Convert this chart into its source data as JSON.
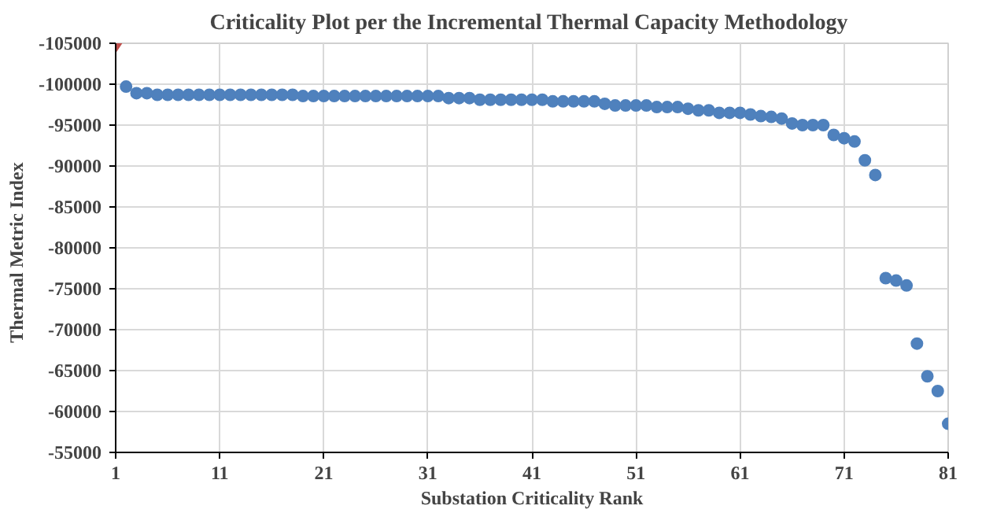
{
  "chart_data": {
    "type": "scatter",
    "title": "Criticality  Plot per the Incremental Thermal Capacity Methodology",
    "xlabel": "Substation Criticality Rank",
    "ylabel": "Thermal  Metric  Index",
    "xlim": [
      1,
      81
    ],
    "xticks": [
      1,
      11,
      21,
      31,
      41,
      51,
      61,
      71,
      81
    ],
    "ylim": [
      -55000,
      -105000
    ],
    "yticks": [
      -105000,
      -100000,
      -95000,
      -90000,
      -85000,
      -80000,
      -75000,
      -70000,
      -65000,
      -60000,
      -55000
    ],
    "grid": true,
    "series": [
      {
        "color": "#c0504d",
        "marker": "diamond",
        "x": [
          1
        ],
        "values": [
          -105000
        ]
      },
      {
        "color": "#4f81bd",
        "marker": "circle",
        "x": [
          2,
          3,
          4,
          5,
          6,
          7,
          8,
          9,
          10,
          11,
          12,
          13,
          14,
          15,
          16,
          17,
          18,
          19,
          20,
          21,
          22,
          23,
          24,
          25,
          26,
          27,
          28,
          29,
          30,
          31,
          32,
          33,
          34,
          35,
          36,
          37,
          38,
          39,
          40,
          41,
          42,
          43,
          44,
          45,
          46,
          47,
          48,
          49,
          50,
          51,
          52,
          53,
          54,
          55,
          56,
          57,
          58,
          59,
          60,
          61,
          62,
          63,
          64,
          65,
          66,
          67,
          68,
          69,
          70,
          71,
          72,
          73,
          74,
          75,
          76,
          77,
          78,
          79,
          80,
          81
        ],
        "values": [
          -99700,
          -98900,
          -98900,
          -98700,
          -98700,
          -98700,
          -98700,
          -98700,
          -98700,
          -98700,
          -98700,
          -98700,
          -98700,
          -98700,
          -98700,
          -98700,
          -98700,
          -98550,
          -98550,
          -98550,
          -98550,
          -98550,
          -98550,
          -98550,
          -98550,
          -98550,
          -98550,
          -98550,
          -98550,
          -98550,
          -98550,
          -98300,
          -98300,
          -98300,
          -98100,
          -98100,
          -98100,
          -98100,
          -98100,
          -98100,
          -98100,
          -97900,
          -97900,
          -97900,
          -97900,
          -97900,
          -97600,
          -97400,
          -97400,
          -97400,
          -97400,
          -97200,
          -97200,
          -97200,
          -97000,
          -96800,
          -96800,
          -96500,
          -96500,
          -96500,
          -96300,
          -96100,
          -96000,
          -95800,
          -95200,
          -95000,
          -95000,
          -95000,
          -93800,
          -93400,
          -93000,
          -90700,
          -88900,
          -76300,
          -76000,
          -75400,
          -68300,
          -64300,
          -62500,
          -58500
        ]
      }
    ]
  }
}
